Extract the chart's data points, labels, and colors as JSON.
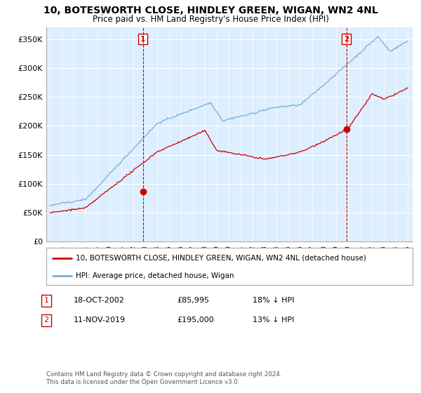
{
  "title": "10, BOTESWORTH CLOSE, HINDLEY GREEN, WIGAN, WN2 4NL",
  "subtitle": "Price paid vs. HM Land Registry's House Price Index (HPI)",
  "ylabel_ticks": [
    "£0",
    "£50K",
    "£100K",
    "£150K",
    "£200K",
    "£250K",
    "£300K",
    "£350K"
  ],
  "ytick_values": [
    0,
    50000,
    100000,
    150000,
    200000,
    250000,
    300000,
    350000
  ],
  "ylim": [
    0,
    370000
  ],
  "transaction1_year": 2002.8,
  "transaction1_price": 85995,
  "transaction2_year": 2019.85,
  "transaction2_price": 195000,
  "legend_line1": "10, BOTESWORTH CLOSE, HINDLEY GREEN, WIGAN, WN2 4NL (detached house)",
  "legend_line2": "HPI: Average price, detached house, Wigan",
  "table_row1_date": "18-OCT-2002",
  "table_row1_price": "£85,995",
  "table_row1_note": "18% ↓ HPI",
  "table_row2_date": "11-NOV-2019",
  "table_row2_price": "£195,000",
  "table_row2_note": "13% ↓ HPI",
  "copyright": "Contains HM Land Registry data © Crown copyright and database right 2024.\nThis data is licensed under the Open Government Licence v3.0.",
  "hpi_color": "#7aadd4",
  "price_color": "#cc0000",
  "plot_bg_color": "#ddeeff",
  "background_color": "#ffffff"
}
